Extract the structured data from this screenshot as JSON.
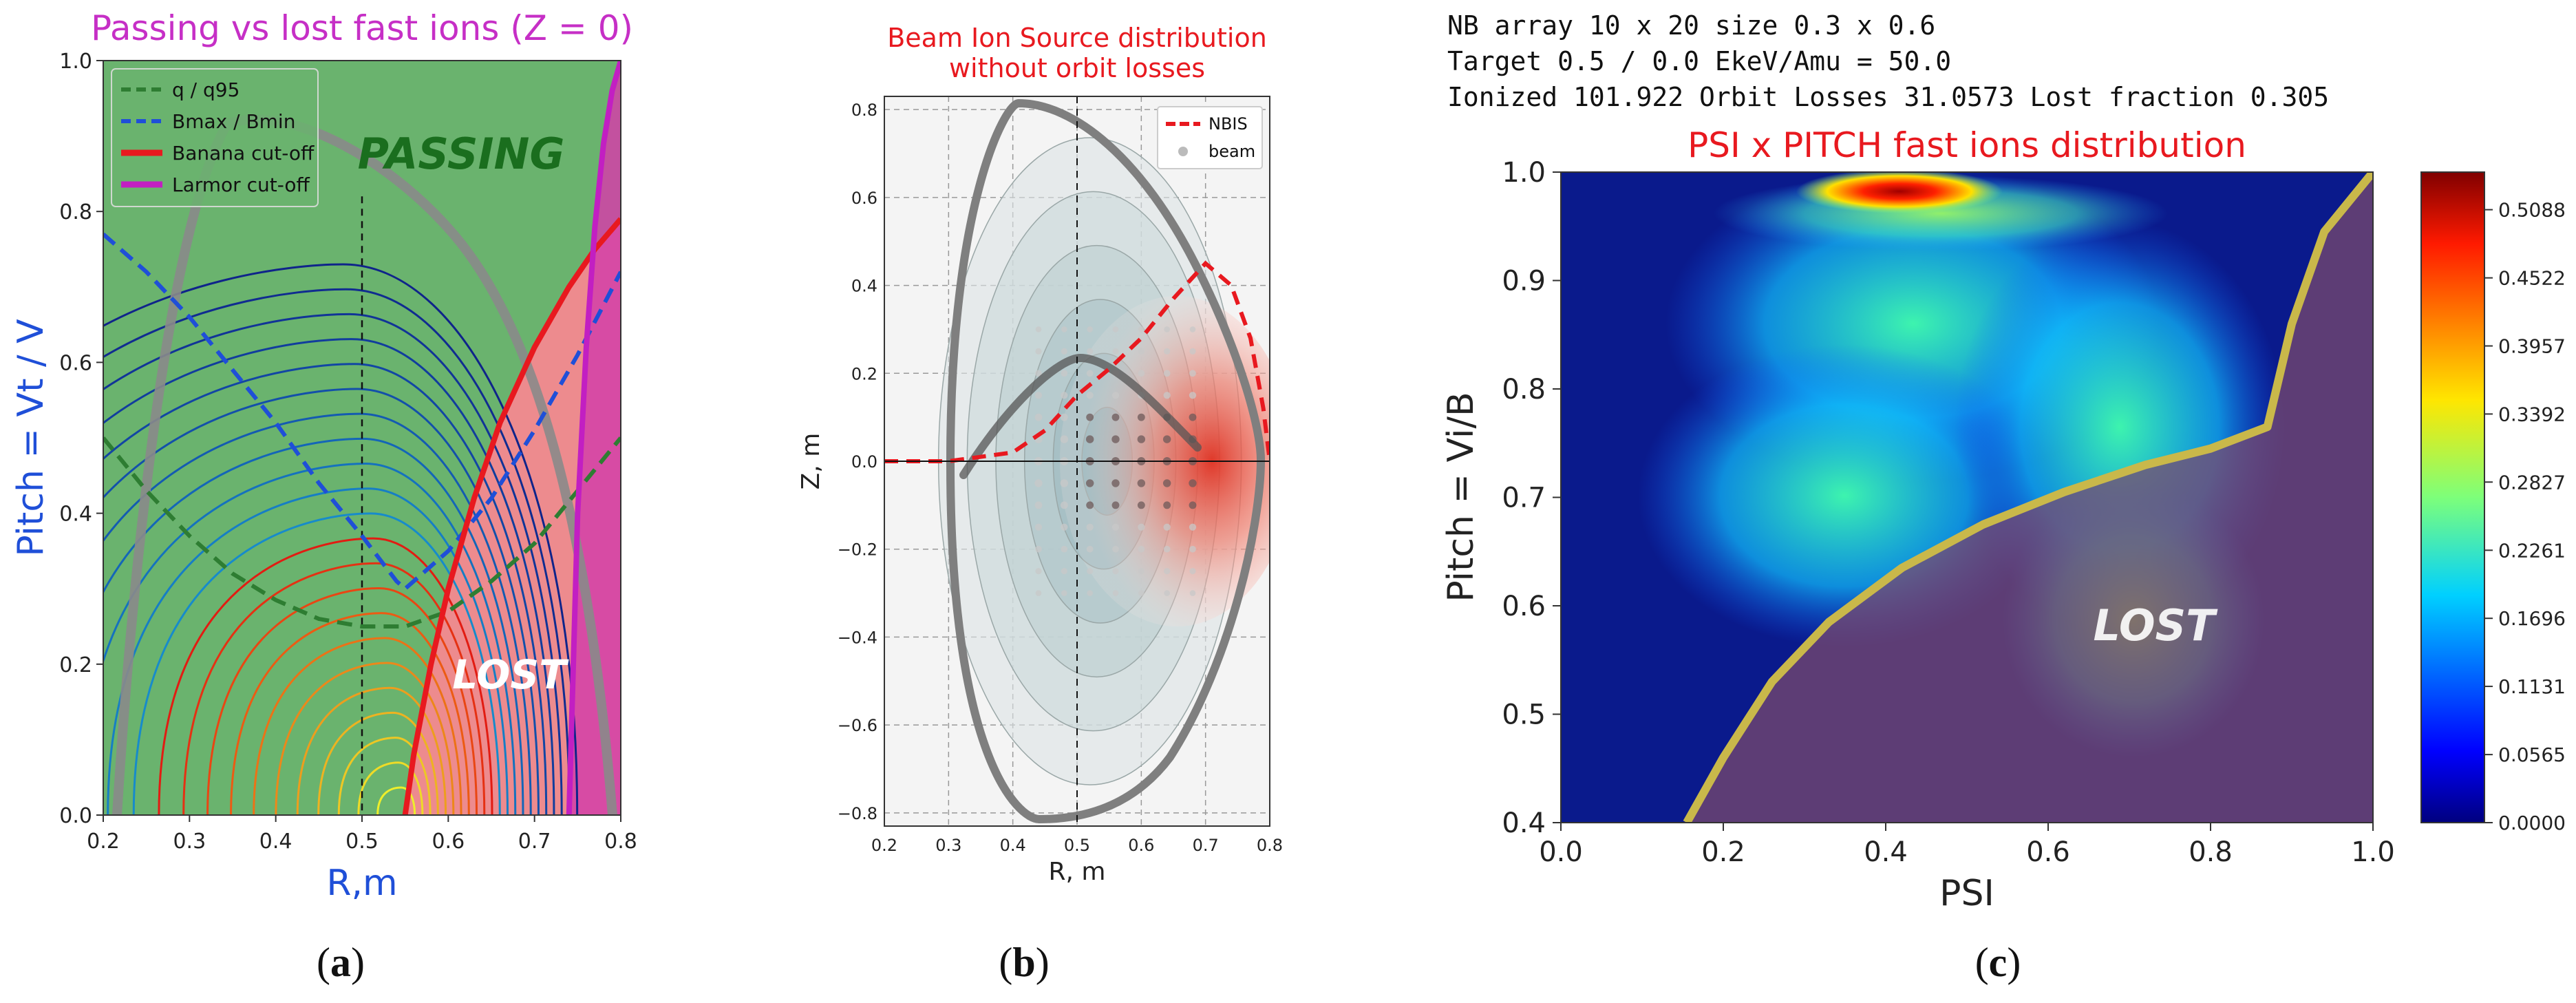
{
  "panel_labels": {
    "a": "(a)",
    "b": "(b)",
    "c": "(c)"
  },
  "chart_data": [
    {
      "type": "line",
      "title": "Passing vs lost fast ions (Z = 0)",
      "xlabel": "R,m",
      "ylabel": "Pitch = Vt / V",
      "xlim": [
        0.2,
        0.8
      ],
      "ylim": [
        0.0,
        1.0
      ],
      "xticks": [
        "0.2",
        "0.3",
        "0.4",
        "0.5",
        "0.6",
        "0.7",
        "0.8"
      ],
      "yticks": [
        "0.0",
        "0.2",
        "0.4",
        "0.6",
        "0.8",
        "1.0"
      ],
      "region_labels": [
        "PASSING",
        "LOST"
      ],
      "legend_position": "top-left",
      "vline_x": 0.5,
      "series": [
        {
          "name": "q / q95",
          "color": "#2e7d32",
          "style": "dashed",
          "x": [
            0.2,
            0.25,
            0.3,
            0.35,
            0.4,
            0.45,
            0.5,
            0.55,
            0.6,
            0.65,
            0.7,
            0.75,
            0.8
          ],
          "y": [
            0.5,
            0.43,
            0.37,
            0.32,
            0.285,
            0.26,
            0.25,
            0.25,
            0.27,
            0.31,
            0.36,
            0.43,
            0.5
          ]
        },
        {
          "name": "Bmax / Bmin",
          "color": "#1f4fd8",
          "style": "dashed",
          "x": [
            0.2,
            0.25,
            0.3,
            0.35,
            0.4,
            0.45,
            0.5,
            0.54,
            0.55,
            0.6,
            0.65,
            0.7,
            0.75,
            0.8
          ],
          "y": [
            0.77,
            0.72,
            0.66,
            0.59,
            0.52,
            0.44,
            0.37,
            0.31,
            0.3,
            0.35,
            0.42,
            0.51,
            0.61,
            0.72
          ]
        },
        {
          "name": "Banana cut-off",
          "color": "#e8191f",
          "style": "solid",
          "x": [
            0.55,
            0.56,
            0.58,
            0.6,
            0.63,
            0.66,
            0.7,
            0.74,
            0.77,
            0.8
          ],
          "y": [
            0.0,
            0.08,
            0.2,
            0.3,
            0.42,
            0.52,
            0.62,
            0.7,
            0.75,
            0.79
          ]
        },
        {
          "name": "Larmor cut-off",
          "color": "#c21fc2",
          "style": "solid",
          "x": [
            0.74,
            0.75,
            0.76,
            0.77,
            0.78,
            0.79,
            0.8
          ],
          "y": [
            0.0,
            0.4,
            0.62,
            0.78,
            0.89,
            0.96,
            1.0
          ]
        }
      ]
    },
    {
      "type": "line",
      "title": "Beam Ion Source distribution\nwithout orbit losses",
      "xlabel": "R, m",
      "ylabel": "Z, m",
      "xlim": [
        0.2,
        0.8
      ],
      "ylim": [
        -0.83,
        0.83
      ],
      "xticks": [
        "0.2",
        "0.3",
        "0.4",
        "0.5",
        "0.6",
        "0.7",
        "0.8"
      ],
      "yticks": [
        "−0.8",
        "−0.6",
        "−0.4",
        "−0.2",
        "0.0",
        "0.2",
        "0.4",
        "0.6",
        "0.8"
      ],
      "grid": true,
      "legend_position": "top-right",
      "series": [
        {
          "name": "NBIS",
          "color": "#e8191f",
          "style": "dashed",
          "x": [
            0.2,
            0.3,
            0.4,
            0.45,
            0.5,
            0.55,
            0.6,
            0.65,
            0.7,
            0.74,
            0.77,
            0.79,
            0.8
          ],
          "y": [
            0.0,
            0.0,
            0.02,
            0.07,
            0.15,
            0.21,
            0.28,
            0.37,
            0.45,
            0.4,
            0.28,
            0.12,
            0.0
          ]
        },
        {
          "name": "beam",
          "color": "#aaaaaa",
          "style": "points"
        }
      ]
    },
    {
      "type": "heatmap",
      "header_lines": [
        "NB array 10 x 20   size 0.3 x 0.6",
        " Target  0.5 / 0.0 EkeV/Amu =  50.0",
        "Ionized 101.922  Orbit Losses 31.0573  Lost fraction 0.305"
      ],
      "title": "PSI x PITCH fast ions distribution",
      "xlabel": "PSI",
      "ylabel": "Pitch = Vi/B",
      "xlim": [
        0.0,
        1.0
      ],
      "ylim": [
        0.4,
        1.0
      ],
      "xticks": [
        "0.0",
        "0.2",
        "0.4",
        "0.6",
        "0.8",
        "1.0"
      ],
      "yticks": [
        "0.4",
        "0.5",
        "0.6",
        "0.7",
        "0.8",
        "0.9",
        "1.0"
      ],
      "colorbar_ticks": [
        "0.0000",
        "0.0565",
        "0.1131",
        "0.1696",
        "0.2261",
        "0.2827",
        "0.3392",
        "0.3957",
        "0.4522",
        "0.5088"
      ],
      "colorbar_range": [
        0.0,
        0.54
      ],
      "region_labels": [
        "LOST"
      ],
      "boundary": {
        "name": "loss boundary",
        "color": "#c9b84a",
        "x": [
          0.155,
          0.2,
          0.26,
          0.33,
          0.42,
          0.52,
          0.62,
          0.72,
          0.8,
          0.87,
          0.9,
          0.94,
          1.0
        ],
        "y": [
          0.4,
          0.46,
          0.53,
          0.585,
          0.635,
          0.675,
          0.705,
          0.73,
          0.745,
          0.765,
          0.86,
          0.945,
          1.0
        ]
      }
    }
  ]
}
